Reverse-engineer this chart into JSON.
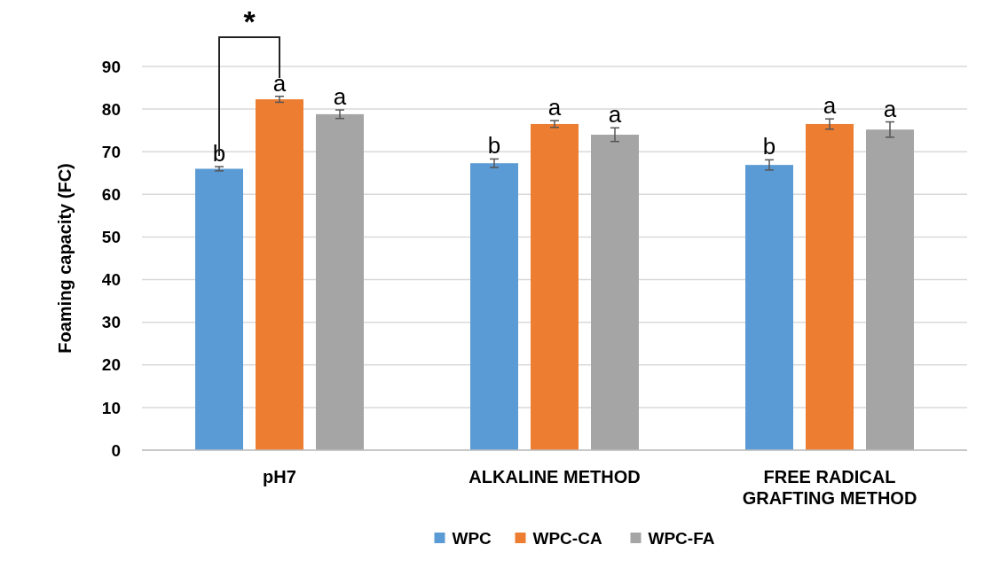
{
  "chart_data": {
    "type": "bar",
    "ylabel": "Foaming capacity (FC)",
    "categories": [
      "pH7",
      "ALKALINE METHOD",
      "FREE RADICAL GRAFTING METHOD"
    ],
    "series": [
      {
        "name": "WPC",
        "color": "#5b9bd5",
        "values": [
          66,
          67.3,
          66.9
        ],
        "errors": [
          0.5,
          1,
          1.2
        ],
        "value_labels": [
          "b",
          "b",
          "b"
        ]
      },
      {
        "name": "WPC-CA",
        "color": "#ed7d31",
        "values": [
          82.3,
          76.5,
          76.5
        ],
        "errors": [
          0.7,
          0.8,
          1.2
        ],
        "value_labels": [
          "a",
          "a",
          "a"
        ]
      },
      {
        "name": "WPC-FA",
        "color": "#a5a5a5",
        "values": [
          78.8,
          74,
          75.2
        ],
        "errors": [
          1,
          1.6,
          1.8
        ],
        "value_labels": [
          "a",
          "a",
          "a"
        ]
      }
    ],
    "ylim": [
      0,
      90
    ],
    "yticks": [
      0,
      10,
      20,
      30,
      40,
      50,
      60,
      70,
      80,
      90
    ],
    "grid": "y",
    "legend": "bottom",
    "annotations": [
      "*"
    ]
  }
}
